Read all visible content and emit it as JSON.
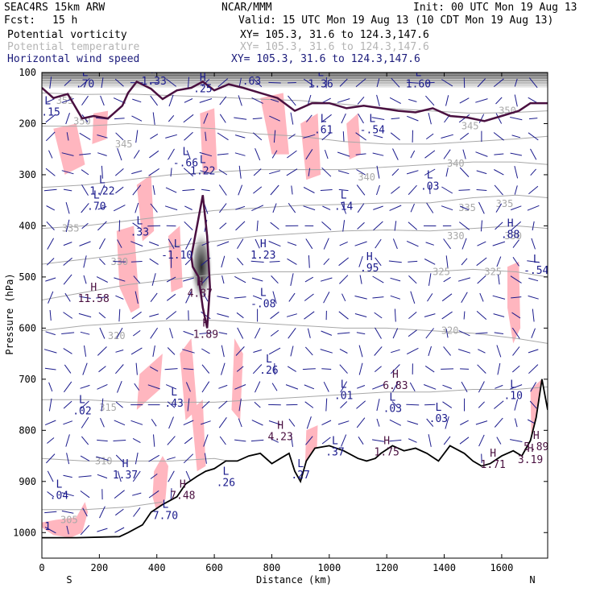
{
  "header": {
    "model": "SEAC4RS 15km ARW",
    "org": "NCAR/MMM",
    "init": "Init: 00 UTC Mon 19 Aug 13",
    "fcst_label": "Fcst:",
    "fcst_value": "15 h",
    "valid": "Valid: 15 UTC Mon 19 Aug 13 (10 CDT Mon 19 Aug 13)"
  },
  "legend": [
    {
      "field": "Potential vorticity",
      "xy": "XY= 105.3, 31.6 to 124.3,147.6",
      "color": "#000000"
    },
    {
      "field": "Potential temperature",
      "xy": "XY= 105.3, 31.6 to 124.3,147.6",
      "color": "#b4b4b4"
    },
    {
      "field": "Horizontal wind speed",
      "xy": "XY= 105.3, 31.6 to 124.3,147.6",
      "color": "#1a1a7a"
    }
  ],
  "colors": {
    "pv_contour": "#4a1040",
    "theta_contour": "#a8a8a8",
    "wind_vectors": "#1a1a8c",
    "shading_pink": "#ffb6bf",
    "terrain": "#000000",
    "hl_labels": "#1a1a8c",
    "hl_labels_pv": "#4a1040"
  },
  "chart_data": {
    "type": "contour cross-section",
    "ylabel": "Pressure (hPa)",
    "xlabel": "Distance (km)",
    "xlim": [
      0,
      1760
    ],
    "ylim": [
      1050,
      100
    ],
    "y_reversed": true,
    "x_ticks": [
      0,
      200,
      400,
      600,
      800,
      1000,
      1200,
      1400,
      1600
    ],
    "y_ticks": [
      100,
      200,
      300,
      400,
      500,
      600,
      700,
      800,
      900,
      1000
    ],
    "x_end_labels": {
      "left": "S",
      "right": "N"
    },
    "theta_contours": [
      {
        "label": "350",
        "x": [
          0,
          150,
          300,
          450,
          600,
          750,
          900,
          1050,
          1200,
          1350,
          1500,
          1650,
          1760
        ],
        "p": [
          140,
          143,
          142,
          145,
          148,
          152,
          155,
          162,
          170,
          175,
          180,
          178,
          175
        ]
      },
      {
        "label": "345",
        "x": [
          0,
          150,
          300,
          450,
          600,
          750,
          900,
          1050,
          1200,
          1350,
          1500,
          1650,
          1760
        ],
        "p": [
          205,
          205,
          200,
          205,
          210,
          220,
          225,
          235,
          240,
          240,
          235,
          230,
          225
        ]
      },
      {
        "label": "340",
        "x": [
          0,
          150,
          300,
          450,
          600,
          750,
          900,
          1050,
          1200,
          1350,
          1500,
          1650,
          1760
        ],
        "p": [
          325,
          320,
          310,
          300,
          295,
          290,
          290,
          290,
          285,
          280,
          275,
          275,
          280
        ]
      },
      {
        "label": "335",
        "x": [
          0,
          150,
          300,
          450,
          600,
          750,
          900,
          1050,
          1200,
          1350,
          1500,
          1650,
          1760
        ],
        "p": [
          405,
          400,
          390,
          380,
          370,
          365,
          360,
          358,
          355,
          355,
          345,
          340,
          345
        ]
      },
      {
        "label": "330",
        "x": [
          0,
          150,
          300,
          450,
          600,
          750,
          900,
          1050,
          1200,
          1350,
          1500,
          1650,
          1760
        ],
        "p": [
          475,
          465,
          455,
          440,
          430,
          420,
          415,
          410,
          408,
          410,
          405,
          400,
          405
        ]
      },
      {
        "label": "325",
        "x": [
          0,
          150,
          300,
          450,
          600,
          750,
          900,
          1050,
          1200,
          1350,
          1500,
          1650,
          1760
        ],
        "p": [
          545,
          530,
          515,
          505,
          495,
          490,
          490,
          490,
          490,
          490,
          485,
          490,
          500
        ]
      },
      {
        "label": "320",
        "x": [
          0,
          150,
          300,
          450,
          600,
          750,
          900,
          1050,
          1200,
          1350,
          1500,
          1650,
          1760
        ],
        "p": [
          605,
          595,
          590,
          585,
          585,
          590,
          595,
          600,
          600,
          605,
          610,
          620,
          630
        ]
      },
      {
        "label": "315",
        "x": [
          0,
          150,
          300,
          450,
          600,
          750,
          900,
          1050,
          1200,
          1350,
          1500,
          1650,
          1760
        ],
        "p": [
          740,
          740,
          745,
          745,
          745,
          740,
          735,
          730,
          725,
          725,
          720,
          720,
          715
        ]
      },
      {
        "label": "310",
        "x": [
          0,
          150,
          300,
          450,
          600,
          650,
          700,
          760
        ],
        "p": [
          855,
          860,
          860,
          860,
          855,
          860,
          880,
          900
        ]
      },
      {
        "label": "305",
        "x": [
          0,
          150,
          300,
          420
        ],
        "p": [
          955,
          955,
          950,
          940
        ]
      }
    ],
    "theta_labels": [
      {
        "text": "350",
        "x": 140,
        "p": 195
      },
      {
        "text": "345",
        "x": 285,
        "p": 240
      },
      {
        "text": "340",
        "x": 1130,
        "p": 305
      },
      {
        "text": "340",
        "x": 1440,
        "p": 278
      },
      {
        "text": "335",
        "x": 100,
        "p": 405
      },
      {
        "text": "335",
        "x": 1480,
        "p": 365
      },
      {
        "text": "335",
        "x": 1610,
        "p": 357
      },
      {
        "text": "330",
        "x": 270,
        "p": 470
      },
      {
        "text": "330",
        "x": 1440,
        "p": 420
      },
      {
        "text": "330",
        "x": 1640,
        "p": 420
      },
      {
        "text": "325",
        "x": 1390,
        "p": 490
      },
      {
        "text": "325",
        "x": 1570,
        "p": 490
      },
      {
        "text": "320",
        "x": 260,
        "p": 615
      },
      {
        "text": "320",
        "x": 1420,
        "p": 605
      },
      {
        "text": "315",
        "x": 230,
        "p": 755
      },
      {
        "text": "310",
        "x": 215,
        "p": 860
      },
      {
        "text": "305",
        "x": 95,
        "p": 975
      },
      {
        "text": "345",
        "x": 1490,
        "p": 205
      },
      {
        "text": "350",
        "x": 1620,
        "p": 175
      },
      {
        "text": "355",
        "x": 80,
        "p": 155
      }
    ],
    "pv_contours": [
      {
        "x": [
          0,
          40,
          90,
          140,
          180,
          230,
          280,
          300,
          330,
          380,
          420,
          470,
          520,
          560,
          600,
          650,
          700,
          760,
          820,
          880,
          940,
          1000,
          1060,
          1120,
          1180,
          1240,
          1300,
          1360,
          1420,
          1480,
          1540,
          1600,
          1660,
          1700,
          1760
        ],
        "p": [
          130,
          150,
          142,
          190,
          185,
          190,
          165,
          140,
          118,
          132,
          152,
          135,
          130,
          118,
          135,
          123,
          130,
          140,
          150,
          175,
          160,
          160,
          170,
          165,
          170,
          175,
          178,
          170,
          185,
          188,
          195,
          185,
          175,
          160,
          160
        ]
      },
      {
        "x": [
          520,
          540,
          560,
          575,
          585,
          575,
          560,
          545,
          525,
          520
        ],
        "p": [
          460,
          400,
          340,
          420,
          520,
          600,
          560,
          500,
          480,
          460
        ]
      }
    ],
    "terrain": {
      "x": [
        0,
        120,
        270,
        300,
        350,
        380,
        420,
        470,
        500,
        540,
        570,
        600,
        640,
        680,
        720,
        760,
        800,
        830,
        860,
        880,
        900,
        920,
        950,
        1000,
        1050,
        1100,
        1130,
        1160,
        1180,
        1220,
        1260,
        1300,
        1340,
        1380,
        1420,
        1470,
        1500,
        1530,
        1560,
        1600,
        1640,
        1670,
        1700,
        1720,
        1740,
        1760
      ],
      "p": [
        1010,
        1010,
        1008,
        1000,
        985,
        960,
        945,
        930,
        905,
        890,
        880,
        875,
        860,
        860,
        850,
        845,
        865,
        855,
        845,
        880,
        900,
        860,
        835,
        830,
        840,
        855,
        860,
        855,
        845,
        830,
        840,
        835,
        845,
        860,
        830,
        845,
        860,
        870,
        865,
        850,
        840,
        850,
        820,
        775,
        700,
        760
      ]
    },
    "shading_regions": [
      {
        "x": [
          0,
          50,
          120,
          150,
          160,
          140,
          100,
          40,
          0
        ],
        "p": [
          980,
          975,
          970,
          940,
          960,
          1000,
          1010,
          1005,
          990
        ]
      },
      {
        "x": [
          390,
          420,
          440,
          430,
          400,
          385
        ],
        "p": [
          880,
          850,
          870,
          935,
          960,
          930
        ]
      },
      {
        "x": [
          670,
          700,
          690,
          660
        ],
        "p": [
          620,
          650,
          780,
          760
        ]
      },
      {
        "x": [
          1620,
          1660,
          1665,
          1640,
          1620
        ],
        "p": [
          480,
          470,
          600,
          630,
          560
        ]
      },
      {
        "x": [
          260,
          320,
          340,
          310,
          270
        ],
        "p": [
          410,
          400,
          560,
          570,
          520
        ]
      },
      {
        "x": [
          330,
          380,
          390,
          350
        ],
        "p": [
          320,
          300,
          410,
          430
        ]
      },
      {
        "x": [
          440,
          480,
          490,
          450
        ],
        "p": [
          420,
          400,
          520,
          530
        ]
      },
      {
        "x": [
          480,
          520,
          540,
          500
        ],
        "p": [
          650,
          620,
          760,
          780
        ]
      },
      {
        "x": [
          520,
          560,
          570,
          540
        ],
        "p": [
          760,
          740,
          870,
          880
        ]
      },
      {
        "x": [
          760,
          840,
          860,
          800
        ],
        "p": [
          150,
          140,
          260,
          260
        ]
      },
      {
        "x": [
          900,
          960,
          970,
          920
        ],
        "p": [
          200,
          180,
          300,
          310
        ]
      },
      {
        "x": [
          40,
          120,
          150,
          80
        ],
        "p": [
          210,
          200,
          280,
          300
        ]
      },
      {
        "x": [
          550,
          600,
          610,
          560
        ],
        "p": [
          180,
          170,
          290,
          300
        ]
      },
      {
        "x": [
          1060,
          1100,
          1110,
          1070
        ],
        "p": [
          200,
          180,
          260,
          270
        ]
      },
      {
        "x": [
          1700,
          1740,
          1745,
          1705
        ],
        "p": [
          720,
          700,
          860,
          870
        ]
      },
      {
        "x": [
          340,
          420,
          410,
          330
        ],
        "p": [
          690,
          650,
          720,
          760
        ]
      },
      {
        "x": [
          920,
          960,
          955,
          915
        ],
        "p": [
          800,
          790,
          870,
          880
        ]
      },
      {
        "x": [
          180,
          230,
          225,
          175
        ],
        "p": [
          180,
          175,
          230,
          240
        ]
      }
    ],
    "hl_labels": [
      {
        "type": "L",
        "value": ".70",
        "x": 150,
        "p": 110
      },
      {
        "type": "L",
        "value": "-.15",
        "x": 20,
        "p": 165
      },
      {
        "type": "H",
        "value": "1.33",
        "x": 390,
        "p": 105
      },
      {
        "type": "H",
        "value": ".25",
        "x": 560,
        "p": 120
      },
      {
        "type": "H",
        "value": ".63",
        "x": 730,
        "p": 105
      },
      {
        "type": "L",
        "value": "1.36",
        "x": 970,
        "p": 110
      },
      {
        "type": "L",
        "value": "1.60",
        "x": 1310,
        "p": 110
      },
      {
        "type": "L",
        "value": ".61",
        "x": 980,
        "p": 200
      },
      {
        "type": "L",
        "value": "-.54",
        "x": 1150,
        "p": 200
      },
      {
        "type": "L",
        "value": "-.66",
        "x": 500,
        "p": 265
      },
      {
        "type": "L",
        "value": "1.22",
        "x": 560,
        "p": 280
      },
      {
        "type": "L",
        "value": "1.22",
        "x": 210,
        "p": 320
      },
      {
        "type": "L",
        "value": ".70",
        "x": 190,
        "p": 350
      },
      {
        "type": "L",
        "value": ".33",
        "x": 340,
        "p": 400
      },
      {
        "type": "L",
        "value": "-1.10",
        "x": 470,
        "p": 445
      },
      {
        "type": "L",
        "value": ".14",
        "x": 1050,
        "p": 350
      },
      {
        "type": "L",
        "value": ".03",
        "x": 1350,
        "p": 310
      },
      {
        "type": "H",
        "value": "1.23",
        "x": 770,
        "p": 445
      },
      {
        "type": "H",
        "value": ".95",
        "x": 1140,
        "p": 470
      },
      {
        "type": "H",
        "value": ".88",
        "x": 1630,
        "p": 405
      },
      {
        "type": "L",
        "value": "-.54",
        "x": 1720,
        "p": 475
      },
      {
        "type": "H",
        "value": "11.58",
        "x": 180,
        "p": 530
      },
      {
        "type": "H",
        "value": "4.87",
        "x": 550,
        "p": 520
      },
      {
        "type": "L",
        "value": "-.08",
        "x": 770,
        "p": 540
      },
      {
        "type": "H",
        "value": "1.89",
        "x": 570,
        "p": 600
      },
      {
        "type": "L",
        "value": ".26",
        "x": 790,
        "p": 670
      },
      {
        "type": "H",
        "value": "6.83",
        "x": 1230,
        "p": 700
      },
      {
        "type": "L",
        "value": ".01",
        "x": 1050,
        "p": 720
      },
      {
        "type": "L",
        "value": ".03",
        "x": 1220,
        "p": 745
      },
      {
        "type": "L",
        "value": ".10",
        "x": 1640,
        "p": 720
      },
      {
        "type": "L",
        "value": ".02",
        "x": 140,
        "p": 750
      },
      {
        "type": "L",
        "value": ".43",
        "x": 460,
        "p": 735
      },
      {
        "type": "L",
        "value": ".03",
        "x": 1380,
        "p": 765
      },
      {
        "type": "H",
        "value": "4.23",
        "x": 830,
        "p": 800
      },
      {
        "type": "L",
        "value": ".37",
        "x": 1020,
        "p": 830
      },
      {
        "type": "H",
        "value": "1.75",
        "x": 1200,
        "p": 830
      },
      {
        "type": "H",
        "value": "1.71",
        "x": 1570,
        "p": 855
      },
      {
        "type": "H",
        "value": "5.89",
        "x": 1720,
        "p": 820
      },
      {
        "type": "H",
        "value": "3.19",
        "x": 1700,
        "p": 845
      },
      {
        "type": "H",
        "value": "1.37",
        "x": 290,
        "p": 875
      },
      {
        "type": "L",
        "value": ".04",
        "x": 60,
        "p": 915
      },
      {
        "type": "H",
        "value": "7.48",
        "x": 490,
        "p": 915
      },
      {
        "type": "L",
        "value": "7.70",
        "x": 430,
        "p": 955
      },
      {
        "type": "L",
        "value": ".26",
        "x": 640,
        "p": 890
      },
      {
        "type": "L",
        "value": ".27",
        "x": 900,
        "p": 875
      }
    ],
    "hl_texts": [
      {
        "text": "1",
        "x": 20,
        "p": 995
      }
    ]
  }
}
